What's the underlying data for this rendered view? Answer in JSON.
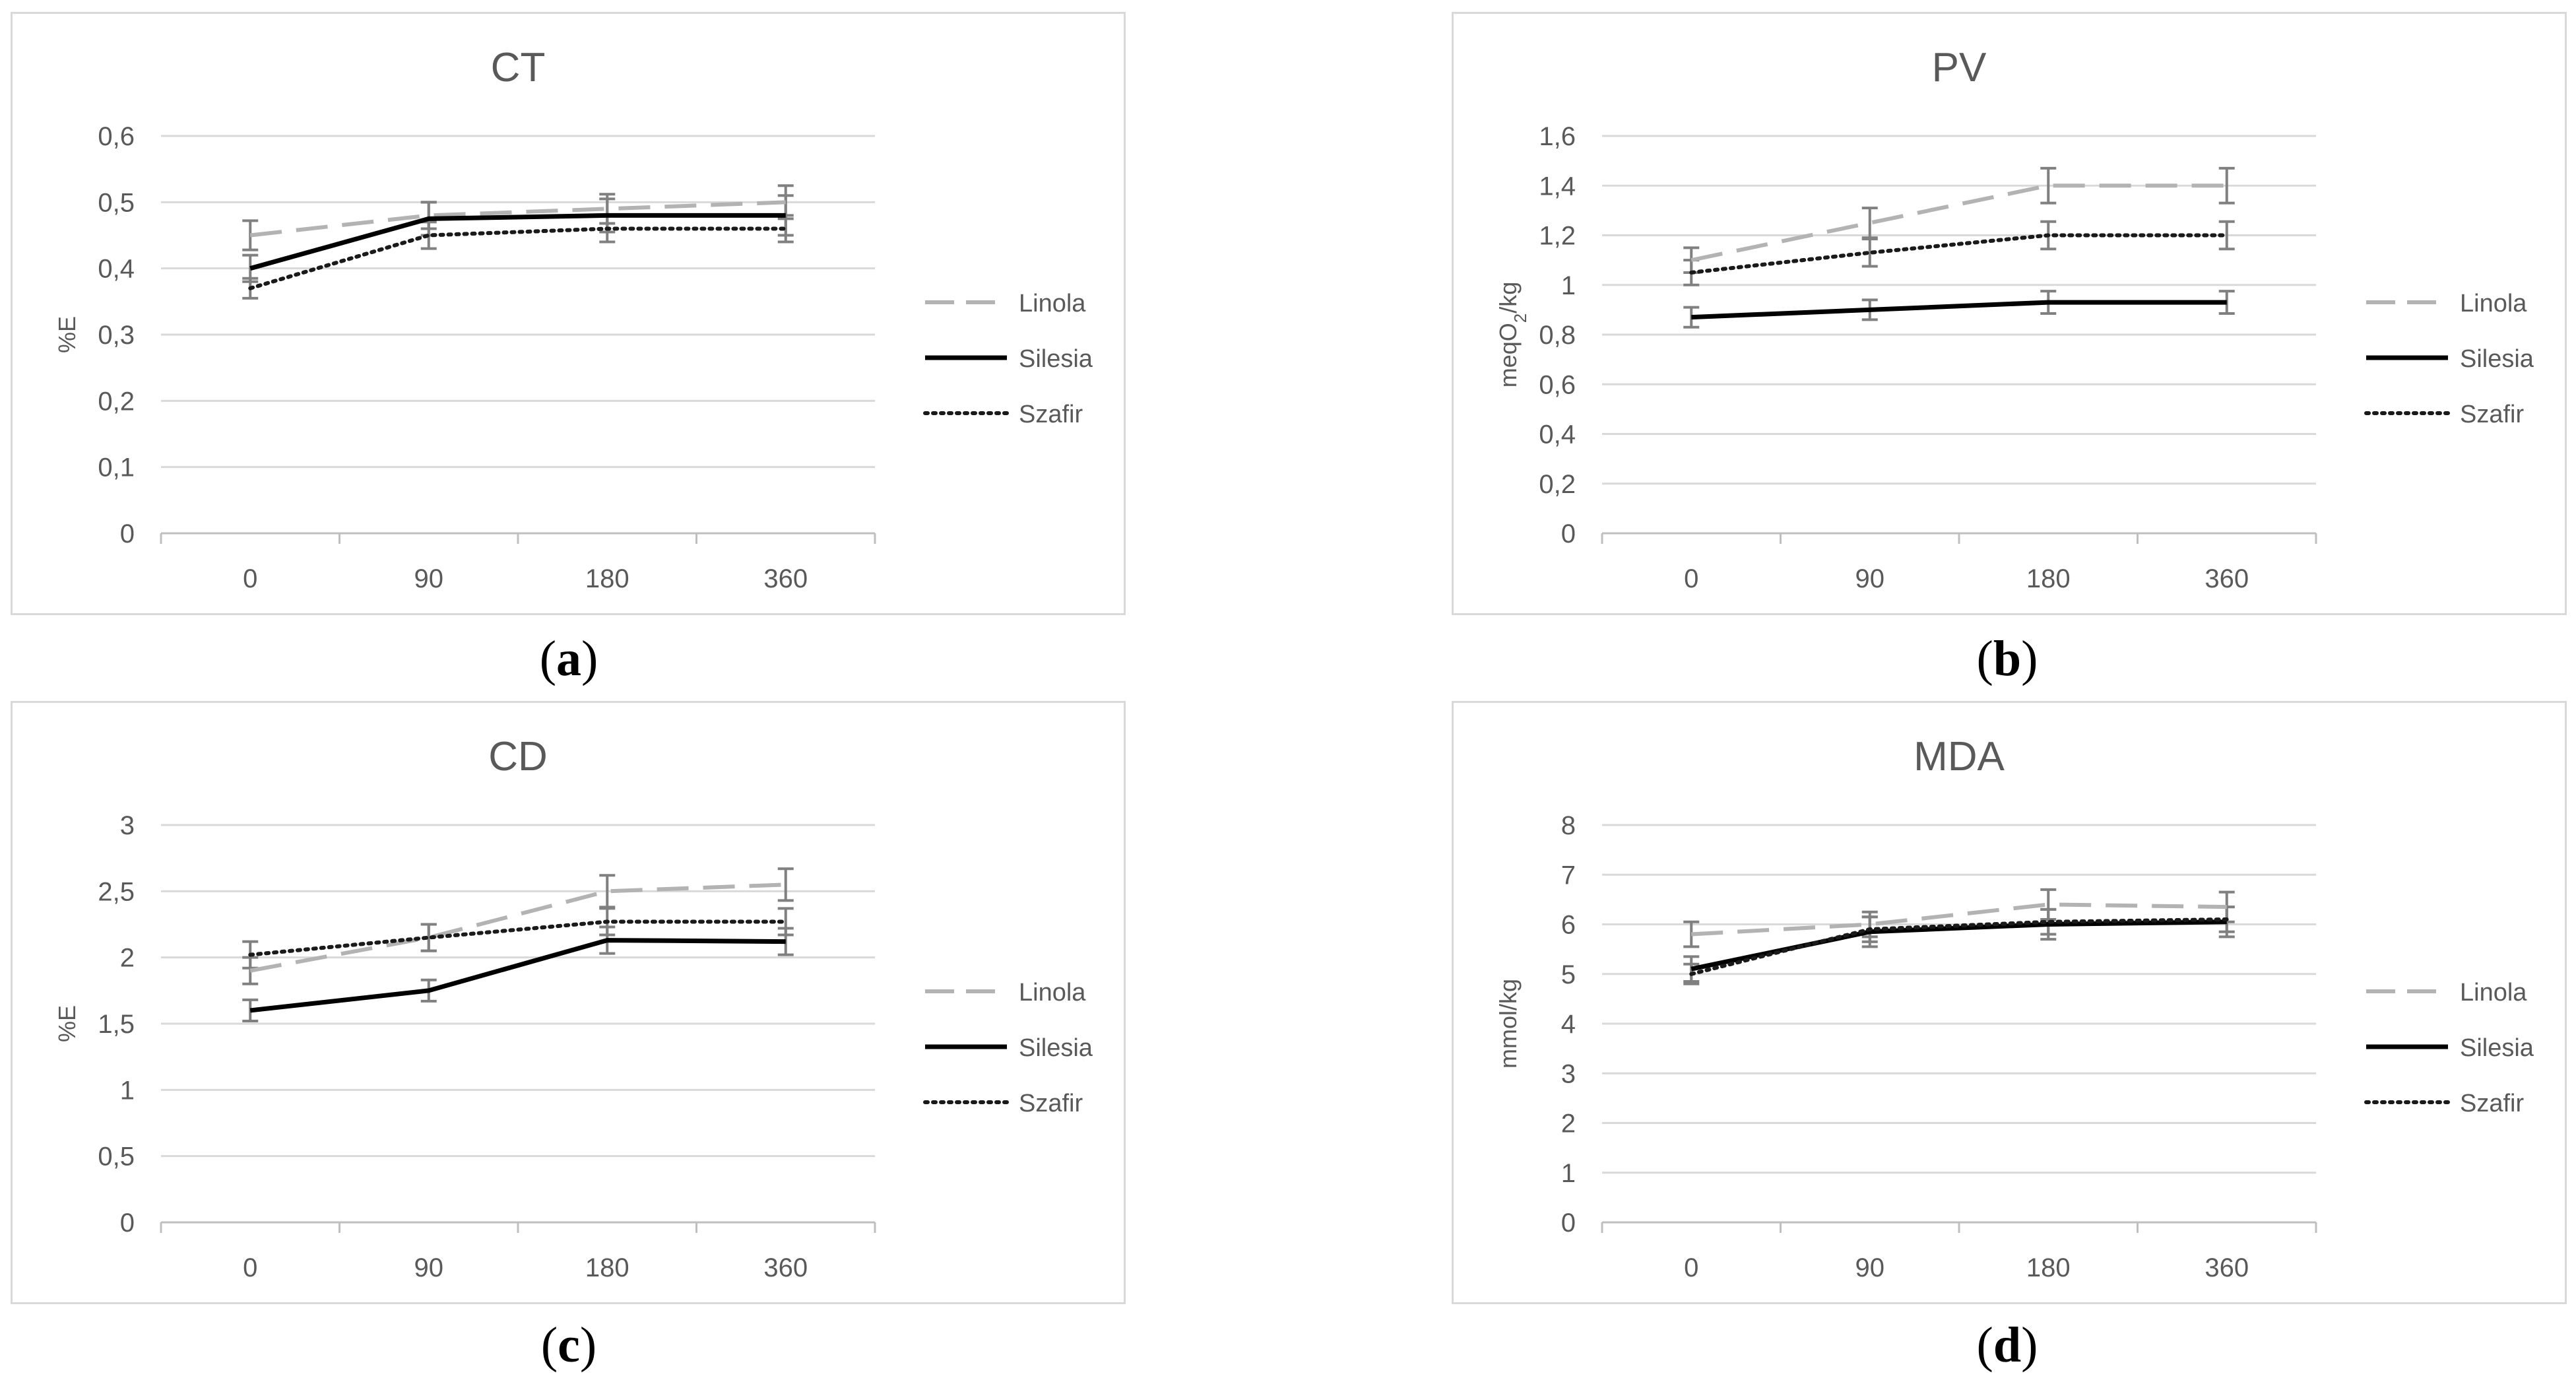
{
  "chart_data": [
    {
      "type": "line",
      "panel": "a",
      "title": "CT",
      "ylabel": "%E",
      "ylabel_sub": "",
      "ylabel_tail": "",
      "ylim": [
        0,
        0.6
      ],
      "yticks": [
        0,
        0.1,
        0.2,
        0.3,
        0.4,
        0.5,
        0.6
      ],
      "ytick_labels": [
        "0",
        "0,1",
        "0,2",
        "0,3",
        "0,4",
        "0,5",
        "0,6"
      ],
      "categories": [
        "0",
        "90",
        "180",
        "360"
      ],
      "series": [
        {
          "name": "Linola",
          "values": [
            0.45,
            0.48,
            0.49,
            0.5
          ],
          "errors": [
            0.022,
            0.02,
            0.022,
            0.025
          ]
        },
        {
          "name": "Silesia",
          "values": [
            0.4,
            0.475,
            0.48,
            0.48
          ],
          "errors": [
            0.02,
            0.025,
            0.025,
            0.03
          ]
        },
        {
          "name": "Szafir",
          "values": [
            0.37,
            0.45,
            0.46,
            0.46
          ],
          "errors": [
            0.015,
            0.02,
            0.02,
            0.02
          ]
        }
      ],
      "caption": "a"
    },
    {
      "type": "line",
      "panel": "b",
      "title": "PV",
      "ylabel": "meqO",
      "ylabel_sub": "2",
      "ylabel_tail": "/kg",
      "ylim": [
        0,
        1.6
      ],
      "yticks": [
        0,
        0.2,
        0.4,
        0.6,
        0.8,
        1.0,
        1.2,
        1.4,
        1.6
      ],
      "ytick_labels": [
        "0",
        "0,2",
        "0,4",
        "0,6",
        "0,8",
        "1",
        "1,2",
        "1,4",
        "1,6"
      ],
      "categories": [
        "0",
        "90",
        "180",
        "360"
      ],
      "series": [
        {
          "name": "Linola",
          "values": [
            1.1,
            1.25,
            1.4,
            1.4
          ],
          "errors": [
            0.05,
            0.06,
            0.07,
            0.07
          ]
        },
        {
          "name": "Silesia",
          "values": [
            0.87,
            0.9,
            0.93,
            0.93
          ],
          "errors": [
            0.04,
            0.04,
            0.045,
            0.045
          ]
        },
        {
          "name": "Szafir",
          "values": [
            1.05,
            1.13,
            1.2,
            1.2
          ],
          "errors": [
            0.05,
            0.055,
            0.055,
            0.055
          ]
        }
      ],
      "caption": "b"
    },
    {
      "type": "line",
      "panel": "c",
      "title": "CD",
      "ylabel": "%E",
      "ylabel_sub": "",
      "ylabel_tail": "",
      "ylim": [
        0,
        3
      ],
      "yticks": [
        0,
        0.5,
        1.0,
        1.5,
        2.0,
        2.5,
        3.0
      ],
      "ytick_labels": [
        "0",
        "0,5",
        "1",
        "1,5",
        "2",
        "2,5",
        "3"
      ],
      "categories": [
        "0",
        "90",
        "180",
        "360"
      ],
      "series": [
        {
          "name": "Linola",
          "values": [
            1.9,
            2.15,
            2.5,
            2.55
          ],
          "errors": [
            0.1,
            0.1,
            0.12,
            0.12
          ]
        },
        {
          "name": "Silesia",
          "values": [
            1.6,
            1.75,
            2.13,
            2.12
          ],
          "errors": [
            0.08,
            0.08,
            0.1,
            0.1
          ]
        },
        {
          "name": "Szafir",
          "values": [
            2.02,
            2.15,
            2.27,
            2.27
          ],
          "errors": [
            0.1,
            0.1,
            0.1,
            0.1
          ]
        }
      ],
      "caption": "c"
    },
    {
      "type": "line",
      "panel": "d",
      "title": "MDA",
      "ylabel": "mmol/kg",
      "ylabel_sub": "",
      "ylabel_tail": "",
      "ylim": [
        0,
        8
      ],
      "yticks": [
        0,
        1,
        2,
        3,
        4,
        5,
        6,
        7,
        8
      ],
      "ytick_labels": [
        "0",
        "1",
        "2",
        "3",
        "4",
        "5",
        "6",
        "7",
        "8"
      ],
      "categories": [
        "0",
        "90",
        "180",
        "360"
      ],
      "series": [
        {
          "name": "Linola",
          "values": [
            5.8,
            6.0,
            6.4,
            6.35
          ],
          "errors": [
            0.25,
            0.25,
            0.3,
            0.3
          ]
        },
        {
          "name": "Silesia",
          "values": [
            5.1,
            5.85,
            6.0,
            6.05
          ],
          "errors": [
            0.25,
            0.3,
            0.3,
            0.3
          ]
        },
        {
          "name": "Szafir",
          "values": [
            5.0,
            5.9,
            6.05,
            6.1
          ],
          "errors": [
            0.2,
            0.25,
            0.25,
            0.25
          ]
        }
      ],
      "caption": "d"
    }
  ],
  "styles": {
    "Linola": {
      "color": "#b3b3b3",
      "dash": "48,22"
    },
    "Silesia": {
      "color": "#000000",
      "dash": ""
    },
    "Szafir": {
      "color": "#1a1a1a",
      "dash": "4,8"
    },
    "error_bar_color": "#808080",
    "grid_color": "#d9d9d9",
    "axis_color": "#bfbfbf",
    "text_color": "#595959"
  }
}
